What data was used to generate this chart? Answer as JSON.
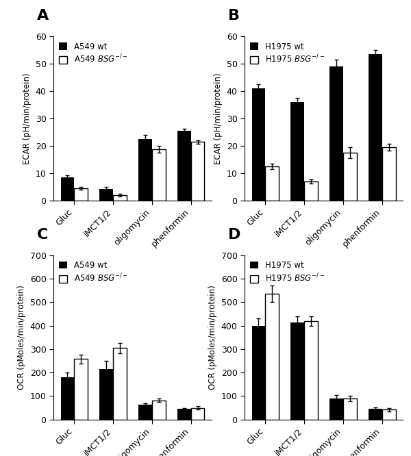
{
  "panel_A": {
    "label": "A",
    "categories": [
      "Gluc",
      "iMCT1/2",
      "oligomycin",
      "phenformin"
    ],
    "wt_values": [
      8.5,
      4.2,
      22.5,
      25.5
    ],
    "ko_values": [
      4.5,
      2.0,
      18.8,
      21.5
    ],
    "wt_errors": [
      0.8,
      0.9,
      1.5,
      0.7
    ],
    "ko_errors": [
      0.5,
      0.5,
      1.2,
      0.6
    ],
    "ylabel": "ECAR (pH/min/protein)",
    "ylim": [
      0,
      60
    ],
    "yticks": [
      0,
      10,
      20,
      30,
      40,
      50,
      60
    ],
    "legend_wt": "A549 wt",
    "legend_ko": "A549 $BSG^{-/-}$"
  },
  "panel_B": {
    "label": "B",
    "categories": [
      "Gluc",
      "iMCT1/2",
      "oligomycin",
      "phenformin"
    ],
    "wt_values": [
      41.0,
      36.0,
      49.0,
      53.5
    ],
    "ko_values": [
      12.5,
      7.0,
      17.5,
      19.5
    ],
    "wt_errors": [
      1.5,
      1.5,
      2.5,
      1.5
    ],
    "ko_errors": [
      1.0,
      0.8,
      2.0,
      1.2
    ],
    "ylabel": "ECAR (pH/min/protein)",
    "ylim": [
      0,
      60
    ],
    "yticks": [
      0,
      10,
      20,
      30,
      40,
      50,
      60
    ],
    "legend_wt": "H1975 wt",
    "legend_ko": "H1975 $BSG^{-/-}$"
  },
  "panel_C": {
    "label": "C",
    "categories": [
      "Gluc",
      "iMCT1/2",
      "oligomycin",
      "phenformin"
    ],
    "wt_values": [
      180,
      215,
      62,
      45
    ],
    "ko_values": [
      258,
      305,
      82,
      50
    ],
    "wt_errors": [
      22,
      35,
      8,
      5
    ],
    "ko_errors": [
      18,
      22,
      8,
      8
    ],
    "ylabel": "OCR (pMoles/min/protein)",
    "ylim": [
      0,
      700
    ],
    "yticks": [
      0,
      100,
      200,
      300,
      400,
      500,
      600,
      700
    ],
    "legend_wt": "A549 wt",
    "legend_ko": "A549 $BSG^{-/-}$"
  },
  "panel_D": {
    "label": "D",
    "categories": [
      "Gluc",
      "iMCT1/2",
      "oligomycin",
      "phenformin"
    ],
    "wt_values": [
      400,
      415,
      90,
      45
    ],
    "ko_values": [
      535,
      420,
      90,
      42
    ],
    "wt_errors": [
      30,
      25,
      15,
      8
    ],
    "ko_errors": [
      35,
      20,
      12,
      8
    ],
    "ylabel": "OCR (pMoles/min/protein)",
    "ylim": [
      0,
      700
    ],
    "yticks": [
      0,
      100,
      200,
      300,
      400,
      500,
      600,
      700
    ],
    "legend_wt": "H1975 wt",
    "legend_ko": "H1975 $BSG^{-/-}$"
  },
  "bar_width": 0.35,
  "wt_color": "#000000",
  "ko_color": "#ffffff",
  "ko_edgecolor": "#000000",
  "figsize": [
    6.0,
    6.66
  ],
  "dpi": 100
}
